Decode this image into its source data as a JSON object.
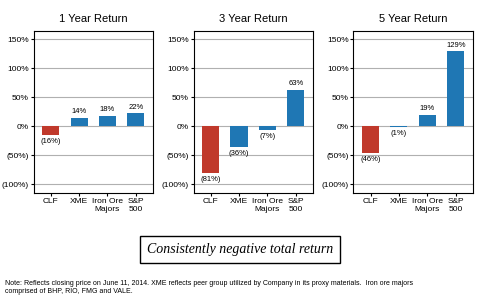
{
  "chart_data": [
    {
      "type": "bar",
      "title": "1 Year Return",
      "categories": [
        "CLF",
        "XME",
        "Iron Ore\nMajors",
        "S&P\n500"
      ],
      "values": [
        -16,
        14,
        18,
        22
      ],
      "value_labels": [
        "(16%)",
        "14%",
        "18%",
        "22%"
      ],
      "data_labels": true,
      "colors": [
        "#c0392b",
        "#1f77b4",
        "#1f77b4",
        "#1f77b4"
      ],
      "ylim": [
        -115,
        165
      ],
      "yticks": [
        {
          "value": -100,
          "label": "(100%)"
        },
        {
          "value": -50,
          "label": "(50%)"
        },
        {
          "value": 0,
          "label": "0%"
        },
        {
          "value": 50,
          "label": "50%"
        },
        {
          "value": 100,
          "label": "100%"
        },
        {
          "value": 150,
          "label": "150%"
        }
      ],
      "grid": true
    },
    {
      "type": "bar",
      "title": "3 Year Return",
      "categories": [
        "CLF",
        "XME",
        "Iron Ore\nMajors",
        "S&P\n500"
      ],
      "values": [
        -81,
        -36,
        -7,
        63
      ],
      "value_labels": [
        "(81%)",
        "(36%)",
        "(7%)",
        "63%"
      ],
      "data_labels": true,
      "colors": [
        "#c0392b",
        "#1f77b4",
        "#1f77b4",
        "#1f77b4"
      ],
      "ylim": [
        -115,
        165
      ],
      "yticks": [
        {
          "value": -100,
          "label": "(100%)"
        },
        {
          "value": -50,
          "label": "(50%)"
        },
        {
          "value": 0,
          "label": "0%"
        },
        {
          "value": 50,
          "label": "50%"
        },
        {
          "value": 100,
          "label": "100%"
        },
        {
          "value": 150,
          "label": "150%"
        }
      ],
      "grid": true
    },
    {
      "type": "bar",
      "title": "5 Year Return",
      "categories": [
        "CLF",
        "XME",
        "Iron Ore\nMajors",
        "S&P\n500"
      ],
      "values": [
        -46,
        -1,
        19,
        129
      ],
      "value_labels": [
        "(46%)",
        "(1%)",
        "19%",
        "129%"
      ],
      "data_labels": true,
      "colors": [
        "#c0392b",
        "#1f77b4",
        "#1f77b4",
        "#1f77b4"
      ],
      "ylim": [
        -115,
        165
      ],
      "yticks": [
        {
          "value": -100,
          "label": "(100%)"
        },
        {
          "value": -50,
          "label": "(50%)"
        },
        {
          "value": 0,
          "label": "0%"
        },
        {
          "value": 50,
          "label": "50%"
        },
        {
          "value": 100,
          "label": "100%"
        },
        {
          "value": 150,
          "label": "150%"
        }
      ],
      "grid": true
    }
  ],
  "annotations": [
    "Consistently negative total return",
    "Note: Reflects closing price on June 11, 2014. XME reflects peer group utilized by Company in its proxy materials.  Iron ore majors\ncomprised of BHP, RIO, FMG and VALE."
  ]
}
